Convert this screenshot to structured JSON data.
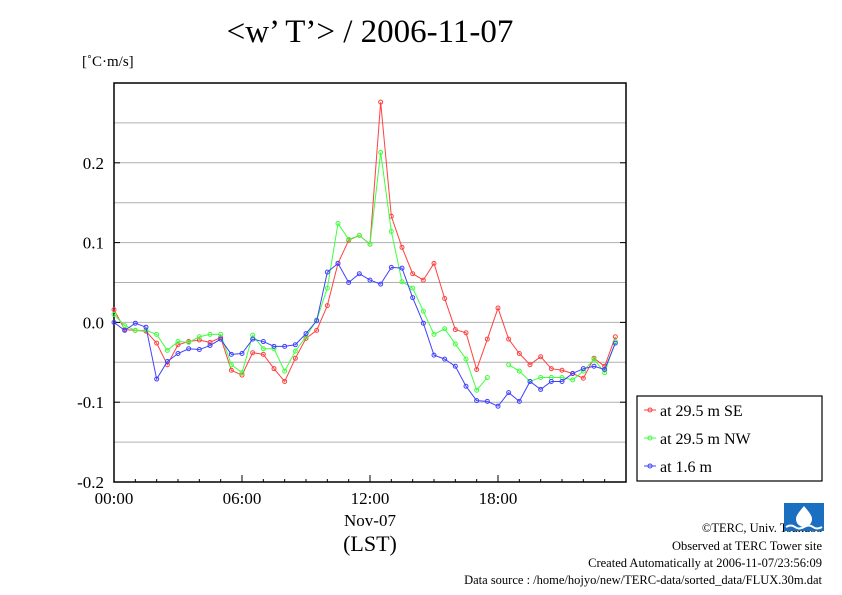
{
  "chart_data": {
    "type": "line",
    "title": "<w’ T’> / 2006-11-07",
    "ylabel": "[˚C·m/s]",
    "xlabel": "(LST)",
    "date_label": "Nov-07",
    "xlim_hours": [
      0,
      24
    ],
    "ylim": [
      -0.2,
      0.3
    ],
    "x_ticks": [
      {
        "h": 0,
        "label": "00:00"
      },
      {
        "h": 6,
        "label": "06:00"
      },
      {
        "h": 12,
        "label": "12:00"
      },
      {
        "h": 18,
        "label": "18:00"
      }
    ],
    "y_ticks": [
      {
        "v": 0.2,
        "label": "0.2"
      },
      {
        "v": 0.1,
        "label": "0.1"
      },
      {
        "v": 0.0,
        "label": "0.0"
      },
      {
        "v": -0.1,
        "label": "-0.1"
      },
      {
        "v": -0.2,
        "label": "-0.2"
      }
    ],
    "grid_step": 0.05,
    "grid": true,
    "legend_placement": "right-bottom",
    "x_step_hours": 0.5,
    "series": [
      {
        "name": "at 29.5 m SE",
        "color": "#ff4040",
        "values": [
          0.016,
          -0.009,
          -0.01,
          -0.011,
          -0.026,
          -0.053,
          -0.028,
          -0.024,
          -0.022,
          -0.025,
          -0.019,
          -0.06,
          -0.066,
          -0.038,
          -0.04,
          -0.058,
          -0.074,
          -0.045,
          -0.02,
          -0.01,
          0.021,
          0.074,
          0.103,
          0.109,
          0.098,
          0.276,
          0.133,
          0.094,
          0.061,
          0.053,
          0.074,
          0.03,
          -0.009,
          -0.013,
          -0.059,
          -0.021,
          0.018,
          -0.021,
          -0.039,
          -0.053,
          -0.043,
          -0.058,
          -0.06,
          -0.064,
          -0.07,
          -0.045,
          -0.055,
          -0.018
        ]
      },
      {
        "name": "at 29.5 m NW",
        "color": "#40ff40",
        "values": [
          0.01,
          -0.004,
          -0.01,
          -0.01,
          -0.015,
          -0.035,
          -0.024,
          -0.025,
          -0.018,
          -0.015,
          -0.015,
          -0.053,
          -0.063,
          -0.016,
          -0.033,
          -0.033,
          -0.061,
          -0.036,
          -0.018,
          0.003,
          0.043,
          0.124,
          0.104,
          0.109,
          0.098,
          0.213,
          0.114,
          0.051,
          0.043,
          0.014,
          -0.015,
          -0.008,
          -0.027,
          -0.046,
          -0.085,
          -0.069,
          null,
          -0.053,
          -0.061,
          -0.074,
          -0.069,
          -0.069,
          -0.069,
          -0.072,
          -0.061,
          -0.046,
          -0.063,
          -0.024
        ]
      },
      {
        "name": "at 1.6 m",
        "color": "#4040ff",
        "values": [
          0.0,
          -0.01,
          -0.001,
          -0.006,
          -0.071,
          -0.049,
          -0.039,
          -0.033,
          -0.034,
          -0.029,
          -0.021,
          -0.04,
          -0.039,
          -0.021,
          -0.024,
          -0.03,
          -0.03,
          -0.028,
          -0.014,
          0.002,
          0.063,
          0.074,
          0.05,
          0.061,
          0.053,
          0.048,
          0.069,
          0.068,
          0.031,
          -0.001,
          -0.041,
          -0.046,
          -0.055,
          -0.08,
          -0.098,
          -0.099,
          -0.105,
          -0.088,
          -0.099,
          -0.074,
          -0.084,
          -0.074,
          -0.074,
          -0.064,
          -0.058,
          -0.055,
          -0.059,
          -0.026
        ]
      }
    ]
  },
  "footer": {
    "copyright": "©TERC, Univ. Tsukuba",
    "observed": "Observed at TERC Tower site",
    "created": "Created Automatically at 2006-11-07/23:56:09",
    "source": "Data source : /home/hojyo/new/TERC-data/sorted_data/FLUX.30m.dat",
    "logo_text": "TERC"
  }
}
